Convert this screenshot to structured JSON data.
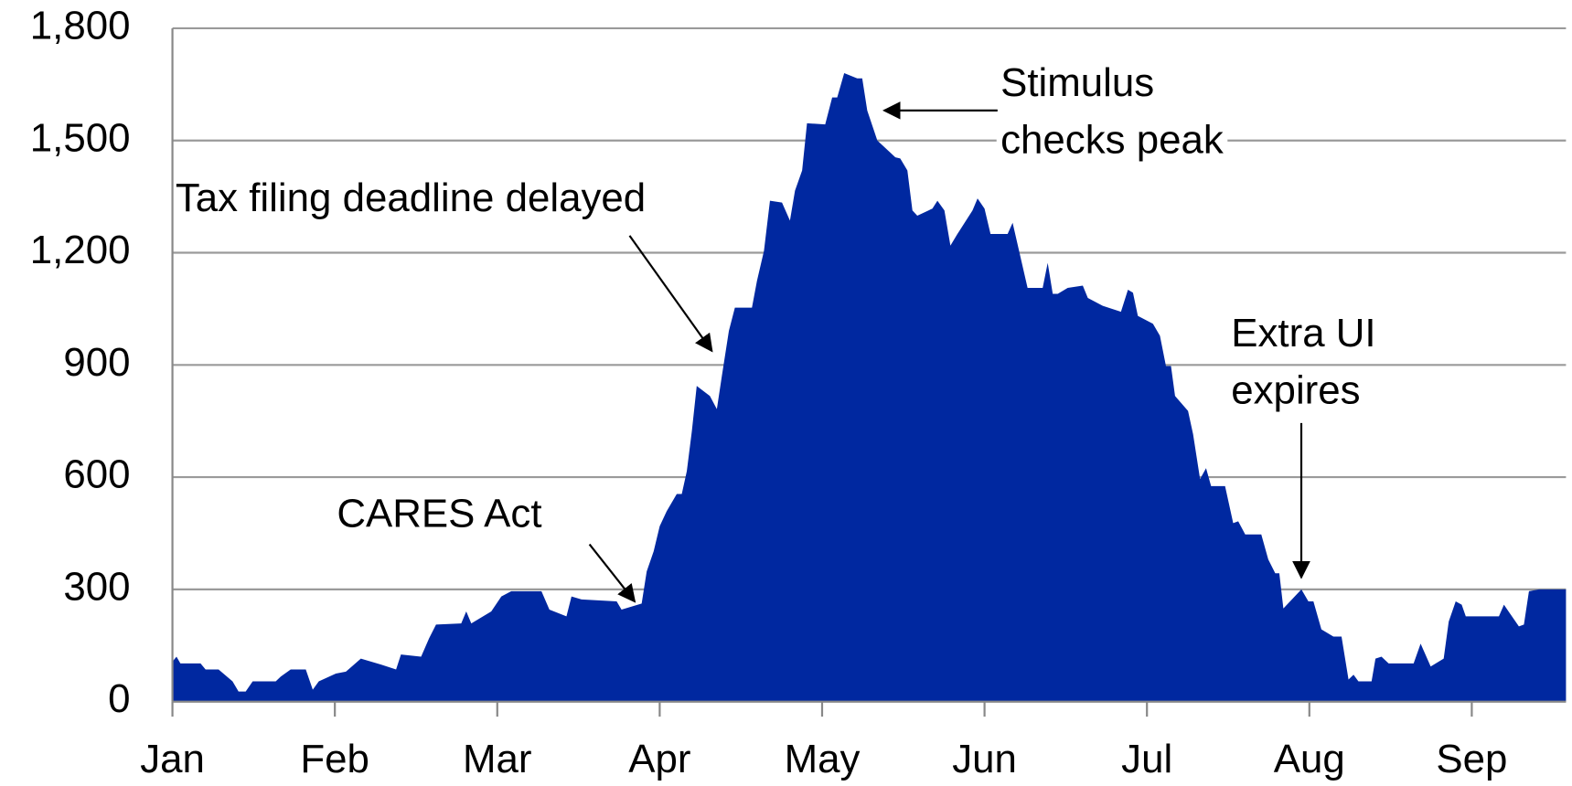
{
  "chart_data": {
    "type": "area",
    "color": "#0028a0",
    "grid": true,
    "x": [
      0,
      0.025,
      0.049,
      0.173,
      0.204,
      0.284,
      0.37,
      0.407,
      0.451,
      0.494,
      0.636,
      0.667,
      0.728,
      0.821,
      0.864,
      0.901,
      1.006,
      1.068,
      1.16,
      1.284,
      1.377,
      1.407,
      1.531,
      1.58,
      1.623,
      1.778,
      1.809,
      1.84,
      1.963,
      2.025,
      2.086,
      2.272,
      2.321,
      2.426,
      2.457,
      2.519,
      2.735,
      2.765,
      2.889,
      2.92,
      2.963,
      3.0,
      3.043,
      3.105,
      3.136,
      3.167,
      3.198,
      3.228,
      3.309,
      3.352,
      3.383,
      3.426,
      3.463,
      3.568,
      3.599,
      3.642,
      3.679,
      3.753,
      3.802,
      3.833,
      3.877,
      3.907,
      4.019,
      4.062,
      4.093,
      4.136,
      4.216,
      4.247,
      4.278,
      4.34,
      4.451,
      4.481,
      4.525,
      4.556,
      4.586,
      4.679,
      4.71,
      4.753,
      4.79,
      4.833,
      4.926,
      4.957,
      5.0,
      5.037,
      5.142,
      5.173,
      5.265,
      5.358,
      5.389,
      5.42,
      5.451,
      5.512,
      5.605,
      5.636,
      5.728,
      5.84,
      5.883,
      5.914,
      5.944,
      6.037,
      6.08,
      6.117,
      6.148,
      6.173,
      6.253,
      6.284,
      6.327,
      6.364,
      6.395,
      6.481,
      6.531,
      6.562,
      6.605,
      6.704,
      6.747,
      6.79,
      6.815,
      6.84,
      6.951,
      6.994,
      7.025,
      7.074,
      7.148,
      7.198,
      7.241,
      7.272,
      7.302,
      7.383,
      7.407,
      7.444,
      7.488,
      7.642,
      7.685,
      7.747,
      7.827,
      7.858,
      7.901,
      7.938,
      7.963,
      8.167,
      8.198,
      8.29,
      8.321,
      8.352,
      8.414,
      8.58
    ],
    "values": [
      107,
      120,
      102,
      102,
      86,
      86,
      54,
      27,
      27,
      54,
      54,
      67,
      86,
      86,
      32,
      54,
      75,
      80,
      115,
      99,
      86,
      126,
      120,
      169,
      206,
      209,
      241,
      209,
      241,
      281,
      295,
      295,
      246,
      228,
      281,
      273,
      268,
      246,
      262,
      348,
      402,
      469,
      509,
      555,
      555,
      616,
      723,
      844,
      817,
      782,
      871,
      991,
      1053,
      1053,
      1125,
      1205,
      1339,
      1334,
      1286,
      1366,
      1420,
      1546,
      1543,
      1615,
      1615,
      1680,
      1666,
      1666,
      1580,
      1500,
      1455,
      1452,
      1420,
      1313,
      1299,
      1318,
      1339,
      1313,
      1219,
      1250,
      1313,
      1345,
      1318,
      1250,
      1250,
      1280,
      1106,
      1106,
      1173,
      1090,
      1090,
      1106,
      1112,
      1079,
      1058,
      1042,
      1101,
      1093,
      1031,
      1010,
      978,
      897,
      897,
      817,
      777,
      715,
      595,
      624,
      576,
      576,
      477,
      482,
      447,
      447,
      380,
      343,
      343,
      249,
      300,
      268,
      268,
      193,
      174,
      174,
      59,
      72,
      54,
      54,
      115,
      120,
      102,
      102,
      155,
      94,
      115,
      214,
      268,
      259,
      228,
      228,
      259,
      201,
      206,
      295,
      300,
      300
    ],
    "xlim": [
      0,
      8.58
    ],
    "xticks": [
      {
        "value": 0,
        "label": "Jan"
      },
      {
        "value": 1,
        "label": "Feb"
      },
      {
        "value": 2,
        "label": "Mar"
      },
      {
        "value": 3,
        "label": "Apr"
      },
      {
        "value": 4,
        "label": "May"
      },
      {
        "value": 5,
        "label": "Jun"
      },
      {
        "value": 6,
        "label": "Jul"
      },
      {
        "value": 7,
        "label": "Aug"
      },
      {
        "value": 8,
        "label": "Sep"
      }
    ],
    "ylim": [
      0,
      1800
    ],
    "yticks": [
      0,
      {
        "value": 300,
        "label": "300"
      },
      {
        "value": 600,
        "label": "600"
      },
      {
        "value": 900,
        "label": "900"
      },
      {
        "value": 1200,
        "label": "1,200"
      },
      {
        "value": 1500,
        "label": "1,500"
      },
      {
        "value": 1800,
        "label": "1,800"
      }
    ],
    "annotations": [
      {
        "text": [
          "Tax filing deadline delayed"
        ]
      },
      {
        "text": [
          "CARES Act"
        ]
      },
      {
        "text": [
          "Stimulus",
          "checks peak"
        ]
      },
      {
        "text": [
          "Extra UI",
          "expires"
        ]
      }
    ]
  }
}
